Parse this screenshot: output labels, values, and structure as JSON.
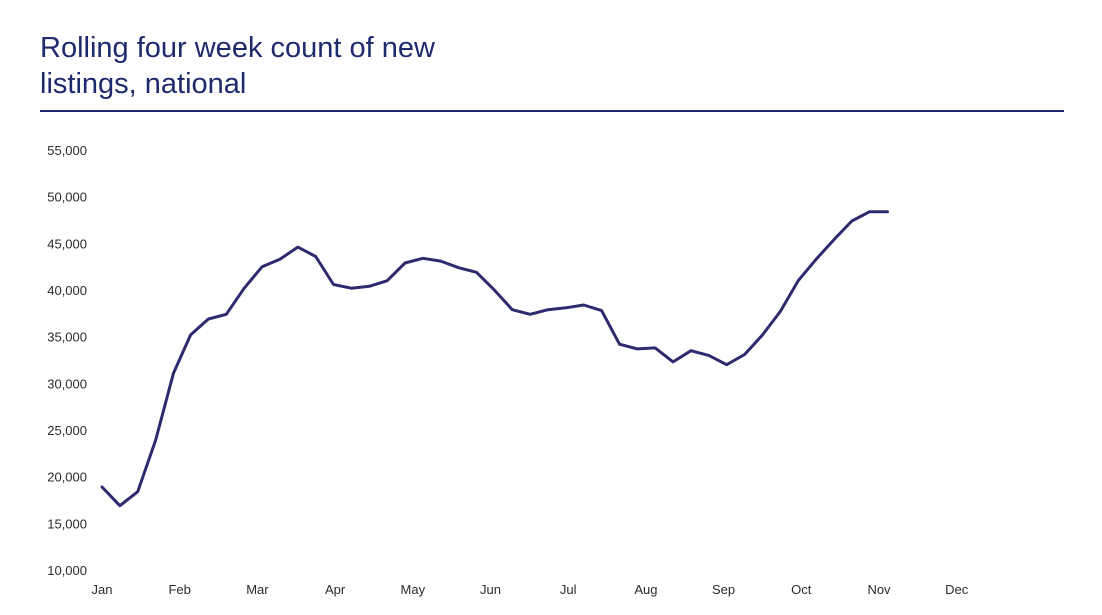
{
  "title_line1": "Rolling four week count of new",
  "title_line2": "listings, national",
  "colors": {
    "line": "#2e2a6e",
    "title": "#1f2a6d",
    "rule": "#1f2a6d",
    "text": "#2b2b2b"
  },
  "chart_data": {
    "type": "line",
    "title": "Rolling four week count of new listings, national",
    "xlabel": "",
    "ylabel": "",
    "ylim": [
      10000,
      55000
    ],
    "yticks": [
      55000,
      50000,
      45000,
      40000,
      35000,
      30000,
      25000,
      20000,
      15000,
      10000
    ],
    "ytick_labels": [
      "55,000",
      "50,000",
      "45,000",
      "40,000",
      "35,000",
      "30,000",
      "25,000",
      "20,000",
      "15,000",
      "10,000"
    ],
    "xlim": [
      0,
      12.85
    ],
    "xticks": [
      0,
      1,
      2,
      3,
      4,
      5,
      6,
      7,
      8,
      9,
      10,
      11
    ],
    "xtick_labels": [
      "Jan",
      "Feb",
      "Mar",
      "Apr",
      "May",
      "Jun",
      "Jul",
      "Aug",
      "Sep",
      "Oct",
      "Nov",
      "Dec"
    ],
    "grid": false,
    "legend": "none",
    "series": [
      {
        "x": [
          0,
          0.23,
          0.46,
          0.69,
          0.92,
          1.14,
          1.37,
          1.6,
          1.83,
          2.06,
          2.29,
          2.52,
          2.75,
          2.98,
          3.21,
          3.44,
          3.67,
          3.9,
          4.13,
          4.36,
          4.59,
          4.82,
          5.05,
          5.28,
          5.51,
          5.74,
          5.97,
          6.2,
          6.43,
          6.66,
          6.89,
          7.12,
          7.35,
          7.58,
          7.81,
          8.04,
          8.27,
          8.5,
          8.73,
          8.96,
          9.19,
          9.42,
          9.65,
          9.88,
          10.11
        ],
        "values": [
          19000,
          17000,
          18500,
          24000,
          31200,
          35300,
          37000,
          37500,
          40300,
          42600,
          43400,
          44700,
          43700,
          40700,
          40300,
          40500,
          41100,
          43000,
          43500,
          43200,
          42500,
          42000,
          40100,
          38000,
          37500,
          38000,
          38200,
          38500,
          37900,
          34300,
          33800,
          33900,
          32400,
          33600,
          33100,
          32100,
          33200,
          35300,
          37800,
          41100,
          43400,
          45500,
          47500,
          48500,
          48500
        ]
      }
    ]
  }
}
